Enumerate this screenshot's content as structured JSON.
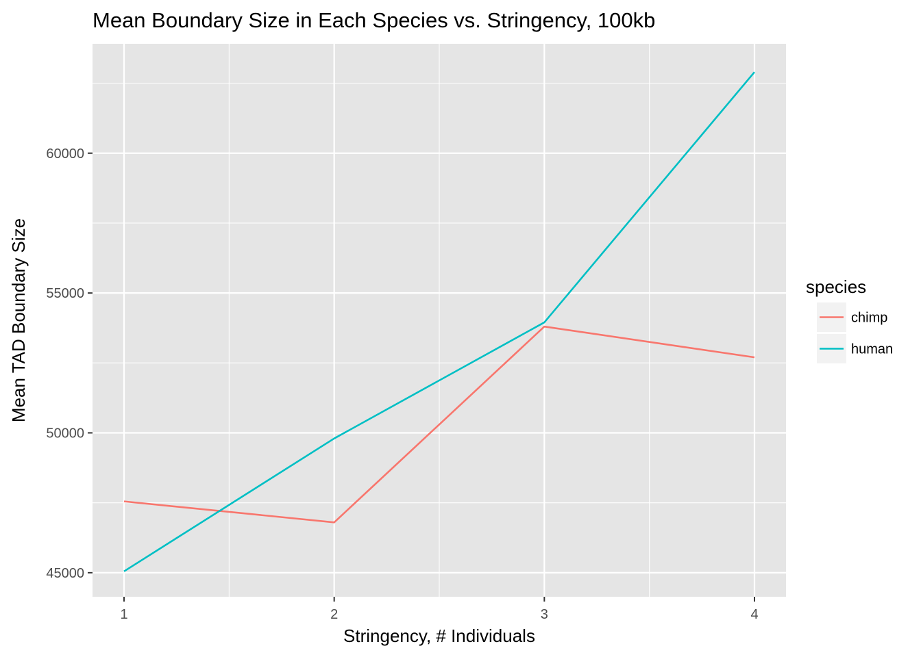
{
  "chart_data": {
    "type": "line",
    "title": "Mean Boundary Size in Each Species vs. Stringency, 100kb",
    "xlabel": "Stringency, # Individuals",
    "ylabel": "Mean TAD Boundary Size",
    "x": [
      1,
      2,
      3,
      4
    ],
    "x_ticks": [
      "1",
      "2",
      "3",
      "4"
    ],
    "xlim": [
      0.85,
      4.15
    ],
    "y_ticks": [
      45000,
      50000,
      55000,
      60000
    ],
    "y_tick_labels": [
      "45000",
      "50000",
      "55000",
      "60000"
    ],
    "ylim": [
      44140,
      63910
    ],
    "grid": true,
    "legend": {
      "title": "species",
      "position": "right"
    },
    "series": [
      {
        "name": "chimp",
        "color": "#F8766D",
        "values": [
          47550,
          46800,
          53800,
          52700
        ]
      },
      {
        "name": "human",
        "color": "#00BFC4",
        "values": [
          45050,
          49800,
          53950,
          62900
        ]
      }
    ],
    "panel_background": "#E5E5E5",
    "grid_color": "#FFFFFF"
  }
}
